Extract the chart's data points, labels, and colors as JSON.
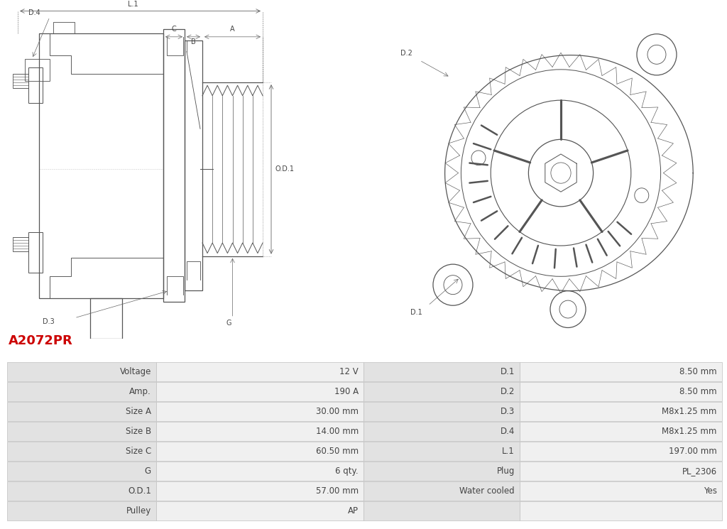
{
  "title": "A2072PR",
  "title_color": "#cc0000",
  "background_color": "#ffffff",
  "table_rows": [
    [
      "Voltage",
      "12 V",
      "D.1",
      "8.50 mm"
    ],
    [
      "Amp.",
      "190 A",
      "D.2",
      "8.50 mm"
    ],
    [
      "Size A",
      "30.00 mm",
      "D.3",
      "M8x1.25 mm"
    ],
    [
      "Size B",
      "14.00 mm",
      "D.4",
      "M8x1.25 mm"
    ],
    [
      "Size C",
      "60.50 mm",
      "L.1",
      "197.00 mm"
    ],
    [
      "G",
      "6 qty.",
      "Plug",
      "PL_2306"
    ],
    [
      "O.D.1",
      "57.00 mm",
      "Water cooled",
      "Yes"
    ],
    [
      "Pulley",
      "AP",
      "",
      ""
    ]
  ],
  "label_bg": "#e2e2e2",
  "value_bg": "#f0f0f0",
  "grid_color": "#c0c0c0",
  "text_color": "#444444",
  "font_size_table": 8.5,
  "line_color": "#555555",
  "dim_color": "#666666"
}
